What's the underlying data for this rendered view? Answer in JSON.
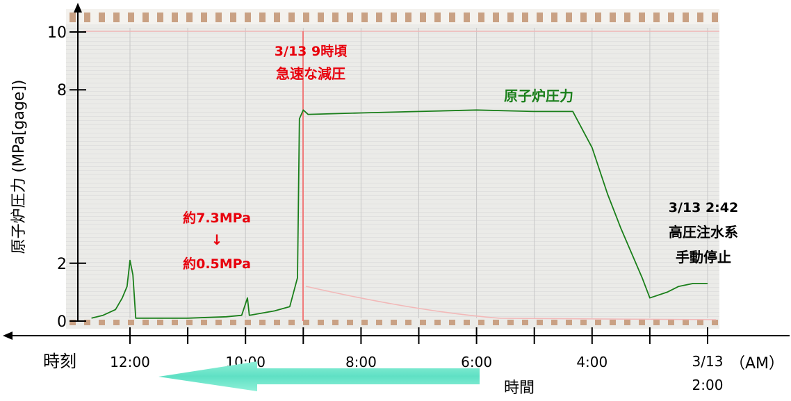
{
  "chart_data": {
    "type": "line",
    "ylabel": "原子炉圧力 (MPa[gage])",
    "y_ticks": [
      "0",
      "2",
      "8",
      "10"
    ],
    "ylim": [
      0,
      10
    ],
    "x_label_left": "時刻",
    "x_ticks": [
      "12:00",
      "10:00",
      "8:00",
      "6:00",
      "4:00",
      "3/13\n2:00"
    ],
    "x_ticks_lines": [
      [
        "12:00"
      ],
      [
        "10:00"
      ],
      [
        "8:00"
      ],
      [
        "6:00"
      ],
      [
        "4:00"
      ],
      [
        "3/13",
        "2:00"
      ]
    ],
    "x_unit_right": "（AM）",
    "time_direction_label": "時間",
    "series": [
      {
        "name": "原子炉圧力",
        "color": "#1a7f1a",
        "points": [
          [
            "12:40",
            0.1
          ],
          [
            "12:28",
            0.2
          ],
          [
            "12:15",
            0.4
          ],
          [
            "12:08",
            0.8
          ],
          [
            "12:03",
            1.2
          ],
          [
            "12:00",
            2.1
          ],
          [
            "11:57",
            1.6
          ],
          [
            "11:54",
            0.1
          ],
          [
            "11:00",
            0.1
          ],
          [
            "10:20",
            0.15
          ],
          [
            "10:04",
            0.2
          ],
          [
            "9:58",
            0.8
          ],
          [
            "9:56",
            0.2
          ],
          [
            "9:30",
            0.35
          ],
          [
            "9:14",
            0.5
          ],
          [
            "9:06",
            1.5
          ],
          [
            "9:04",
            7.0
          ],
          [
            "9:00",
            7.3
          ],
          [
            "8:55",
            7.15
          ],
          [
            "8:00",
            7.2
          ],
          [
            "7:00",
            7.25
          ],
          [
            "6:00",
            7.3
          ],
          [
            "5:00",
            7.25
          ],
          [
            "4:20",
            7.25
          ],
          [
            "4:00",
            6.0
          ],
          [
            "3:44",
            4.4
          ],
          [
            "3:30",
            3.2
          ],
          [
            "3:08",
            1.5
          ],
          [
            "3:00",
            0.8
          ],
          [
            "2:42",
            1.0
          ],
          [
            "2:30",
            1.2
          ],
          [
            "2:15",
            1.3
          ],
          [
            "2:00",
            1.3
          ]
        ]
      }
    ],
    "annotations": {
      "depressurization_line1": "3/13 9時頃",
      "depressurization_line2": "急速な減圧",
      "pressure_change_from": "約7.3MPa",
      "pressure_change_arrow": "↓",
      "pressure_change_to": "約0.5MPa",
      "hpci_line1": "3/13 2:42",
      "hpci_line2": "高圧注水系",
      "hpci_line3": "手動停止"
    },
    "colors": {
      "series_line": "#1a7f1a",
      "annotation_red": "#e8000c",
      "axis": "#000000",
      "arrow_fill": "#5fe0c4"
    }
  }
}
